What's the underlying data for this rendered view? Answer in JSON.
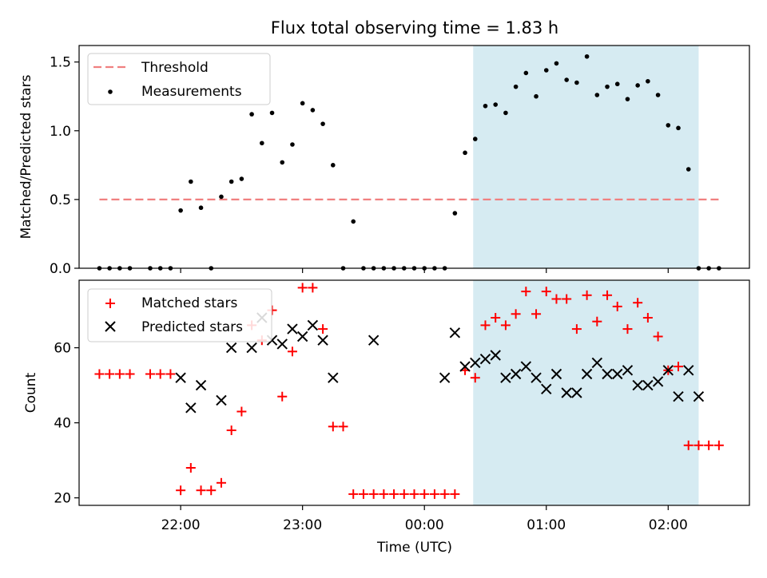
{
  "chart_data": [
    {
      "type": "scatter",
      "title": "Flux total observing time = 1.83 h",
      "ylabel": "Matched/Predicted stars",
      "ylim": [
        0,
        1.62
      ],
      "yticks": [
        "0.0",
        "0.5",
        "1.0",
        "1.5"
      ],
      "highlight": {
        "x_start": "00:24",
        "x_end": "02:15",
        "color": "#add8e6"
      },
      "threshold": {
        "name": "Threshold",
        "y": 0.5,
        "x_start": "21:20",
        "x_end": "02:25",
        "color": "#f08080"
      },
      "legend": {
        "position": "top-left",
        "entries": [
          "Threshold",
          "Measurements"
        ]
      },
      "series": [
        {
          "name": "Measurements",
          "color": "#000000",
          "x": [
            "21:20",
            "21:25",
            "21:30",
            "21:35",
            "21:45",
            "21:50",
            "21:55",
            "22:00",
            "22:05",
            "22:10",
            "22:15",
            "22:20",
            "22:25",
            "22:30",
            "22:35",
            "22:40",
            "22:45",
            "22:50",
            "22:55",
            "23:00",
            "23:05",
            "23:10",
            "23:15",
            "23:20",
            "23:25",
            "23:30",
            "23:35",
            "23:40",
            "23:45",
            "23:50",
            "23:55",
            "00:00",
            "00:05",
            "00:10",
            "00:15",
            "00:20",
            "00:25",
            "00:30",
            "00:35",
            "00:40",
            "00:45",
            "00:50",
            "00:55",
            "01:00",
            "01:05",
            "01:10",
            "01:15",
            "01:20",
            "01:25",
            "01:30",
            "01:35",
            "01:40",
            "01:45",
            "01:50",
            "01:55",
            "02:00",
            "02:05",
            "02:10",
            "02:15",
            "02:20",
            "02:25"
          ],
          "y": [
            0,
            0,
            0,
            0,
            0,
            0,
            0,
            0.42,
            0.63,
            0.44,
            0,
            0.52,
            0.63,
            0.65,
            1.12,
            0.91,
            1.13,
            0.77,
            0.9,
            1.2,
            1.15,
            1.05,
            0.75,
            0,
            0.34,
            0,
            0,
            0,
            0,
            0,
            0,
            0,
            0,
            0,
            0.4,
            0.84,
            0.94,
            1.18,
            1.19,
            1.13,
            1.32,
            1.42,
            1.25,
            1.44,
            1.49,
            1.37,
            1.35,
            1.54,
            1.26,
            1.32,
            1.34,
            1.23,
            1.33,
            1.36,
            1.26,
            1.04,
            1.02,
            0.72,
            0,
            0,
            0
          ]
        }
      ]
    },
    {
      "type": "scatter",
      "xlabel": "Time (UTC)",
      "ylabel": "Count",
      "ylim": [
        18,
        78
      ],
      "yticks": [
        "20",
        "40",
        "60"
      ],
      "xticks": [
        "22:00",
        "23:00",
        "00:00",
        "01:00",
        "02:00"
      ],
      "highlight": {
        "x_start": "00:24",
        "x_end": "02:15",
        "color": "#add8e6"
      },
      "legend": {
        "position": "top-left",
        "entries": [
          "Matched stars",
          "Predicted stars"
        ]
      },
      "series": [
        {
          "name": "Matched stars",
          "marker": "plus",
          "color": "#ff0000",
          "x": [
            "21:20",
            "21:25",
            "21:30",
            "21:35",
            "21:45",
            "21:50",
            "21:55",
            "22:00",
            "22:05",
            "22:10",
            "22:15",
            "22:20",
            "22:25",
            "22:30",
            "22:35",
            "22:40",
            "22:45",
            "22:50",
            "22:55",
            "23:00",
            "23:05",
            "23:10",
            "23:15",
            "23:20",
            "23:25",
            "23:30",
            "23:35",
            "23:40",
            "23:45",
            "23:50",
            "23:55",
            "00:00",
            "00:05",
            "00:10",
            "00:15",
            "00:20",
            "00:25",
            "00:30",
            "00:35",
            "00:40",
            "00:45",
            "00:50",
            "00:55",
            "01:00",
            "01:05",
            "01:10",
            "01:15",
            "01:20",
            "01:25",
            "01:30",
            "01:35",
            "01:40",
            "01:45",
            "01:50",
            "01:55",
            "02:00",
            "02:05",
            "02:10",
            "02:15",
            "02:20",
            "02:25"
          ],
          "y": [
            53,
            53,
            53,
            53,
            53,
            53,
            53,
            22,
            28,
            22,
            22,
            24,
            38,
            43,
            66,
            62,
            70,
            47,
            59,
            76,
            76,
            65,
            39,
            39,
            21,
            21,
            21,
            21,
            21,
            21,
            21,
            21,
            21,
            21,
            21,
            54,
            52,
            66,
            68,
            66,
            69,
            75,
            69,
            75,
            73,
            73,
            65,
            74,
            67,
            74,
            71,
            65,
            72,
            68,
            63,
            54,
            55,
            34,
            34,
            34,
            34
          ]
        },
        {
          "name": "Predicted stars",
          "marker": "x",
          "color": "#000000",
          "x": [
            "22:00",
            "22:05",
            "22:10",
            "22:20",
            "22:25",
            "22:35",
            "22:40",
            "22:45",
            "22:50",
            "22:55",
            "23:00",
            "23:05",
            "23:10",
            "23:15",
            "23:35",
            "00:10",
            "00:15",
            "00:20",
            "00:25",
            "00:30",
            "00:35",
            "00:40",
            "00:45",
            "00:50",
            "00:55",
            "01:00",
            "01:05",
            "01:10",
            "01:15",
            "01:20",
            "01:25",
            "01:30",
            "01:35",
            "01:40",
            "01:45",
            "01:50",
            "01:55",
            "02:00",
            "02:05",
            "02:10",
            "02:15"
          ],
          "y": [
            52,
            44,
            50,
            46,
            60,
            60,
            68,
            62,
            61,
            65,
            63,
            66,
            62,
            52,
            62,
            52,
            64,
            55,
            56,
            57,
            58,
            52,
            53,
            55,
            52,
            49,
            53,
            48,
            48,
            53,
            56,
            53,
            53,
            54,
            50,
            50,
            51,
            54,
            47,
            54,
            47
          ]
        }
      ]
    }
  ]
}
